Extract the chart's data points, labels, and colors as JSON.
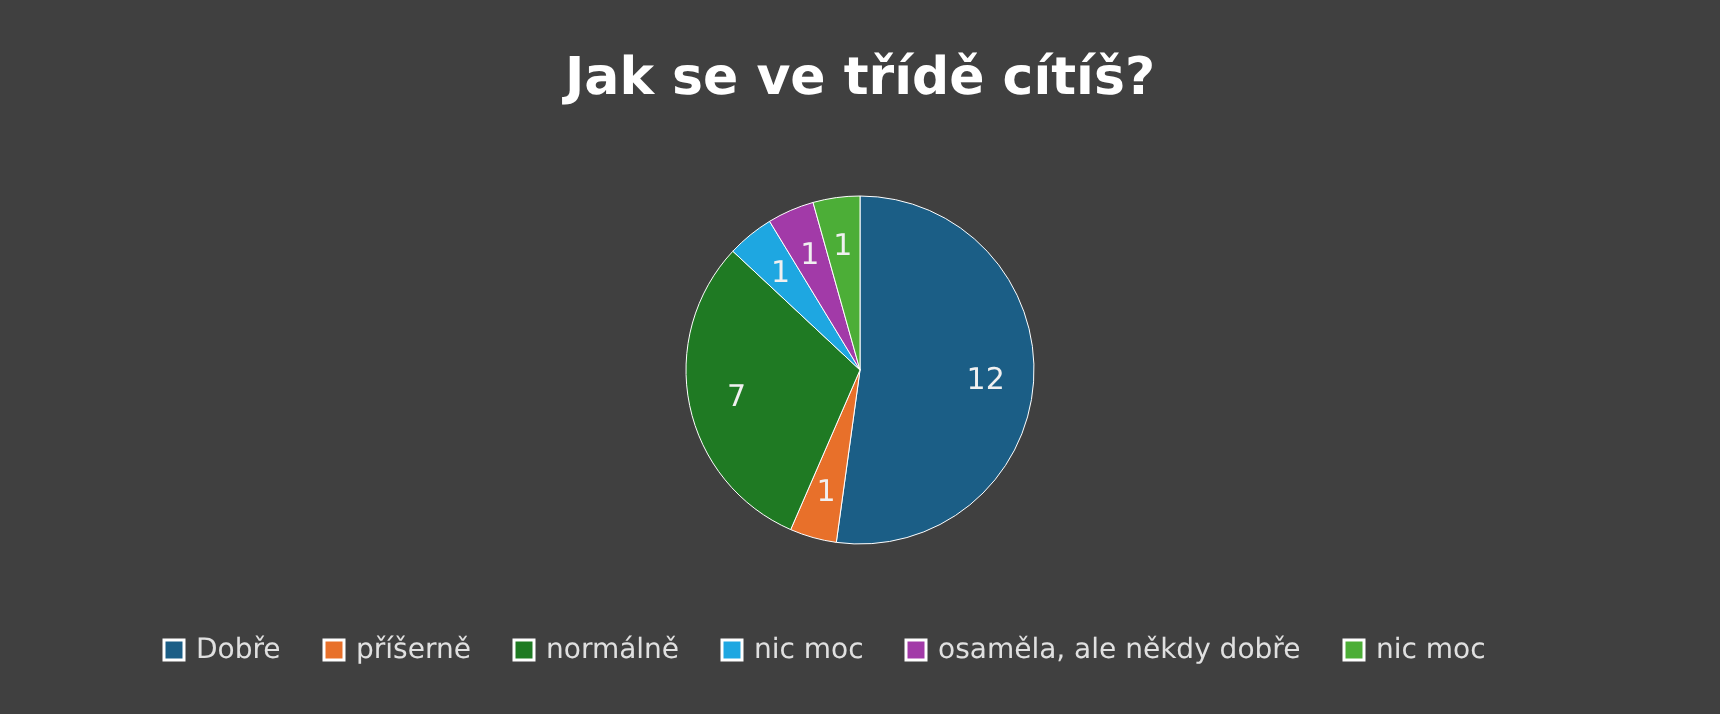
{
  "chart_data": {
    "type": "pie",
    "title": "Jak se ve třídě cítíš?",
    "categories": [
      "Dobře",
      "příšerně",
      "normálně",
      "nic moc",
      "osaměla, ale někdy dobře",
      "nic moc"
    ],
    "values": [
      12,
      1,
      7,
      1,
      1,
      1
    ],
    "colors": [
      "#1b5e86",
      "#e8702a",
      "#1f7a23",
      "#1ea7e1",
      "#a23aa8",
      "#4cae37"
    ],
    "data_labels": true,
    "legend": "bottom"
  }
}
